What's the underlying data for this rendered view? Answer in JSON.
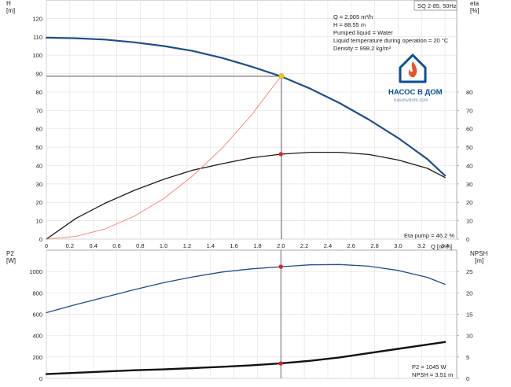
{
  "model_label": "SQ 2-85, 50Hz",
  "info": [
    "Q = 2.005 m³/h",
    "H = 88.55 m",
    "Pumped liquid = Water",
    "Liquid temperature during operation = 20 °C",
    "Density = 998.2 kg/m³"
  ],
  "logo": {
    "title": "НАСОС В ДОМ",
    "subtitle": "nasosvdom.com",
    "brand_color": "#0a4e9a",
    "flame_color": "#e8542a"
  },
  "chart_data": [
    {
      "type": "line",
      "id": "head-efficiency",
      "y_left_label_top": "H",
      "y_left_unit": "[m]",
      "y_right_label_top": "eta",
      "y_right_unit": "[%]",
      "xlabel": "Q [m³/h]",
      "xlim": [
        0,
        3.5
      ],
      "x_ticks": [
        0,
        0.2,
        0.4,
        0.6,
        0.8,
        1.0,
        1.2,
        1.4,
        1.6,
        1.8,
        2.0,
        2.2,
        2.4,
        2.6,
        2.8,
        3.0,
        3.2,
        3.4
      ],
      "x_tick_labels": [
        "0",
        "0.2",
        "0.4",
        "0.6",
        "0.8",
        "1.0",
        "1.2",
        "1.4",
        "1.6",
        "1.8",
        "2.0",
        "2.2",
        "2.4",
        "2.6",
        "2.8",
        "3.0",
        "3.2",
        "3.4"
      ],
      "ylim_left": [
        0,
        130
      ],
      "y_left_ticks": [
        0,
        10,
        20,
        30,
        40,
        50,
        60,
        70,
        80,
        90,
        100,
        110,
        120
      ],
      "ylim_right": [
        0,
        130
      ],
      "y_right_ticks": [
        0,
        10,
        20,
        30,
        40,
        50,
        60,
        70,
        80
      ],
      "grid": true,
      "series": [
        {
          "role": "head",
          "axis": "left",
          "color": "#1f4e8c",
          "width": 2.2,
          "x": [
            0,
            0.25,
            0.5,
            0.75,
            1.0,
            1.25,
            1.5,
            1.75,
            2.0,
            2.25,
            2.5,
            2.75,
            3.0,
            3.25,
            3.4
          ],
          "y": [
            109.5,
            109.2,
            108.5,
            107.0,
            105.0,
            102.3,
            98.5,
            93.8,
            88.5,
            81.8,
            74.0,
            65.0,
            55.0,
            43.5,
            34.5
          ]
        },
        {
          "role": "efficiency",
          "axis": "right",
          "color": "#1a1a1a",
          "width": 1.3,
          "x": [
            0,
            0.25,
            0.5,
            0.75,
            1.0,
            1.25,
            1.5,
            1.75,
            2.0,
            2.25,
            2.5,
            2.75,
            3.0,
            3.25,
            3.4
          ],
          "y": [
            0,
            11.2,
            19.5,
            26.5,
            32.5,
            37.5,
            41.0,
            44.2,
            46.2,
            47.2,
            47.2,
            46.0,
            43.0,
            38.5,
            33.5
          ]
        },
        {
          "role": "system-curve",
          "axis": "left",
          "color": "#f28b82",
          "width": 1.0,
          "x": [
            0,
            0.25,
            0.5,
            0.75,
            1.0,
            1.25,
            1.5,
            1.75,
            2.0
          ],
          "y": [
            0,
            1.5,
            5.5,
            12.5,
            22.0,
            34.5,
            49.5,
            67.5,
            88.5
          ]
        }
      ],
      "duty_point": {
        "x": 2.005,
        "y": 88.55,
        "color": "#f5c518"
      },
      "efficiency_point": {
        "x": 2.0,
        "y": 46.2,
        "color": "#e02020"
      },
      "annotation": "Eta pump = 46.2 %"
    },
    {
      "type": "line",
      "id": "power-npsh",
      "y_left_label_top": "P2",
      "y_left_unit": "[W]",
      "y_right_label_top": "NPSH",
      "y_right_unit": "[m]",
      "xlim": [
        0,
        3.5
      ],
      "x_ticks": [
        0,
        0.2,
        0.4,
        0.6,
        0.8,
        1.0,
        1.2,
        1.4,
        1.6,
        1.8,
        2.0,
        2.2,
        2.4,
        2.6,
        2.8,
        3.0,
        3.2,
        3.4
      ],
      "ylim_left": [
        0,
        1200
      ],
      "y_left_ticks": [
        0,
        200,
        400,
        600,
        800,
        1000
      ],
      "ylim_right": [
        0,
        30
      ],
      "y_right_ticks": [
        0,
        5,
        10,
        15,
        20,
        25
      ],
      "grid": true,
      "series": [
        {
          "role": "power",
          "axis": "left",
          "color": "#1f4e8c",
          "width": 1.3,
          "x": [
            0,
            0.25,
            0.5,
            0.75,
            1.0,
            1.25,
            1.5,
            1.75,
            2.0,
            2.25,
            2.5,
            2.75,
            3.0,
            3.25,
            3.4
          ],
          "y": [
            615,
            690,
            760,
            830,
            895,
            950,
            995,
            1025,
            1045,
            1062,
            1065,
            1050,
            1010,
            945,
            880
          ]
        },
        {
          "role": "npsh",
          "axis": "right",
          "color": "#111111",
          "width": 2.4,
          "x": [
            0,
            0.25,
            0.5,
            0.75,
            1.0,
            1.25,
            1.5,
            1.75,
            2.0,
            2.25,
            2.5,
            2.75,
            3.0,
            3.25,
            3.4
          ],
          "y": [
            1.0,
            1.3,
            1.6,
            1.9,
            2.1,
            2.4,
            2.7,
            3.05,
            3.51,
            4.1,
            4.9,
            5.9,
            6.9,
            7.9,
            8.5
          ]
        }
      ],
      "power_point": {
        "x": 2.0,
        "y": 1045,
        "color": "#e02020"
      },
      "npsh_point": {
        "x": 2.0,
        "y": 3.51,
        "color": "#e02020"
      },
      "annotations": [
        "P2 = 1045 W",
        "NPSH = 3.51 m"
      ]
    }
  ]
}
